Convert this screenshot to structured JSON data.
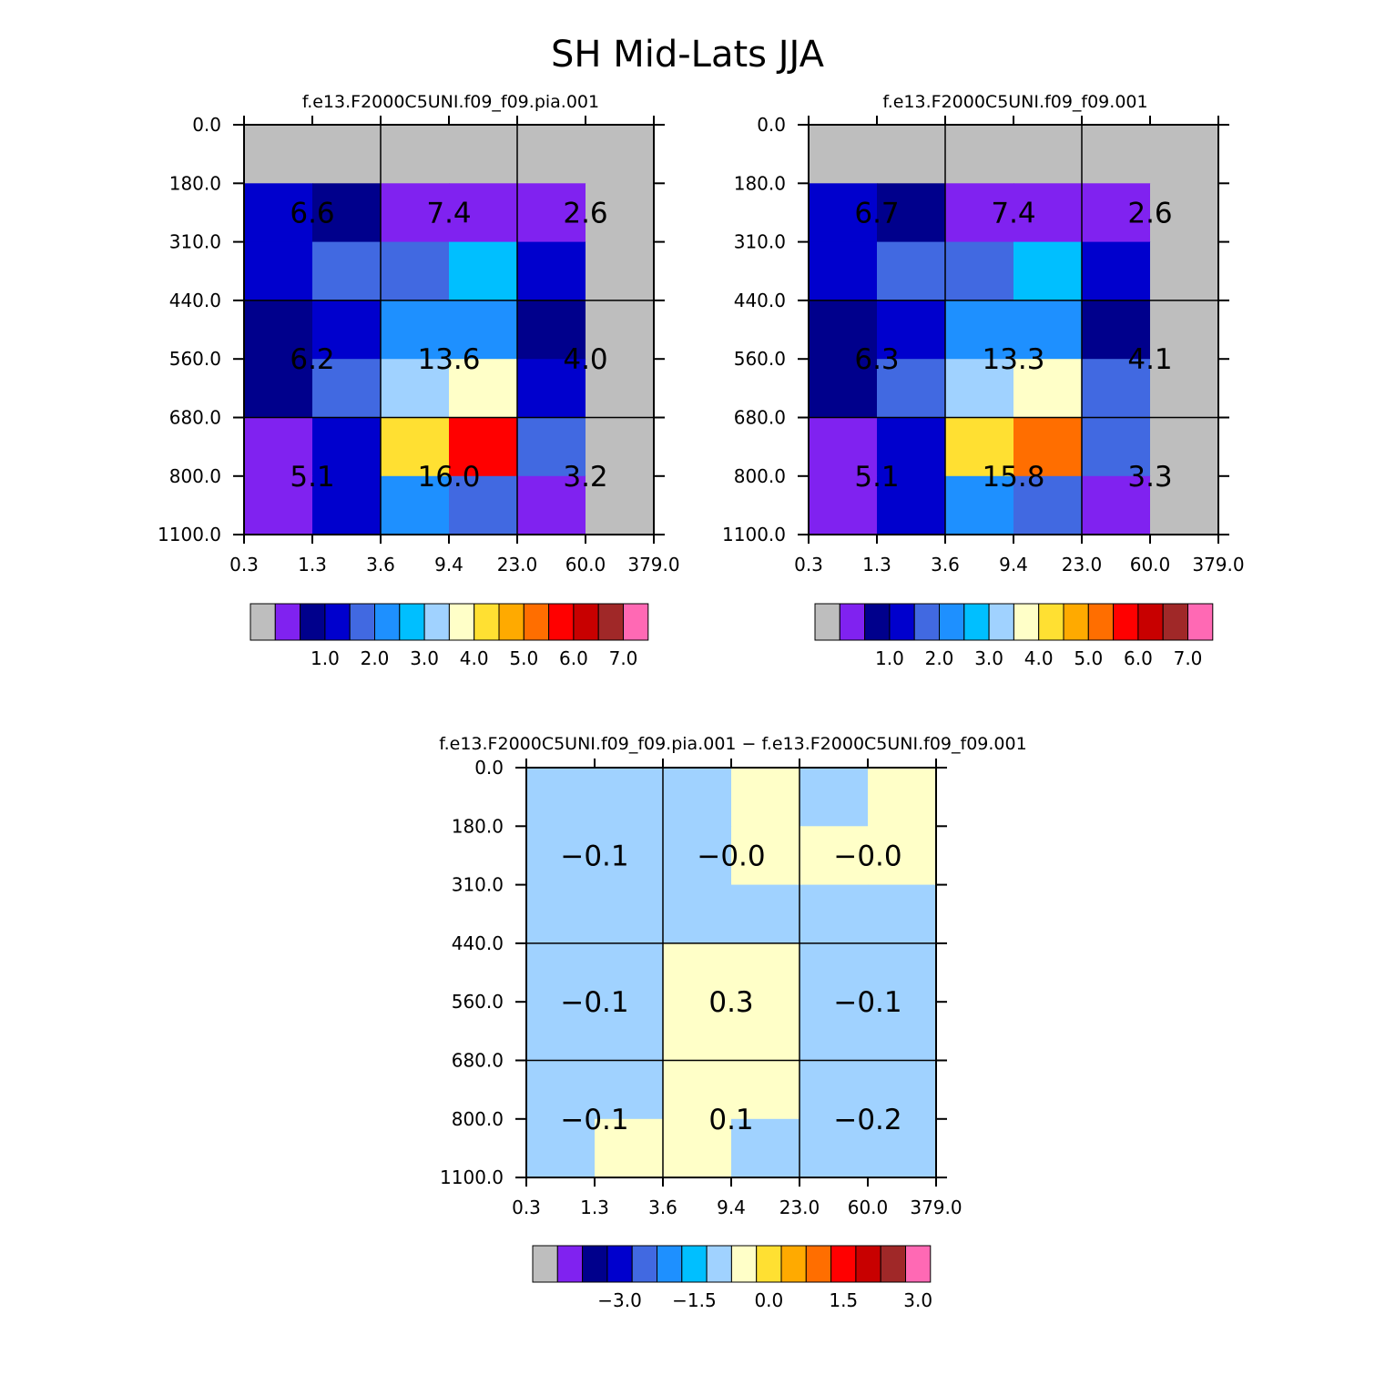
{
  "title": "SH Mid-Lats JJA",
  "color_scale": [
    "#bebebe",
    "#8022f0",
    "#00008c",
    "#0000cd",
    "#4169e1",
    "#1e90ff",
    "#00bfff",
    "#a0d2ff",
    "#ffffc8",
    "#ffe032",
    "#ffaa00",
    "#ff6e00",
    "#ff0000",
    "#c80000",
    "#a02828",
    "#ff69b4"
  ],
  "chart_data": [
    {
      "id": "left",
      "type": "heatmap",
      "title": "f.e13.F2000C5UNI.f09_f09.pia.001",
      "x_ticks": [
        "0.3",
        "1.3",
        "3.6",
        "9.4",
        "23.0",
        "60.0",
        "379.0"
      ],
      "y_ticks": [
        "0.0",
        "180.0",
        "310.0",
        "440.0",
        "560.0",
        "680.0",
        "800.0",
        "1100.0"
      ],
      "cells": [
        [
          0,
          0,
          0,
          0,
          0,
          0
        ],
        [
          3,
          2,
          1,
          1,
          1,
          0
        ],
        [
          3,
          4,
          4,
          6,
          3,
          0
        ],
        [
          2,
          3,
          5,
          5,
          2,
          0
        ],
        [
          2,
          4,
          7,
          8,
          3,
          0
        ],
        [
          1,
          3,
          9,
          12,
          4,
          0
        ],
        [
          1,
          3,
          5,
          4,
          1,
          0
        ]
      ],
      "labels": [
        [
          "6.6",
          "7.4",
          "2.6"
        ],
        [
          "6.2",
          "13.6",
          "4.0"
        ],
        [
          "5.1",
          "16.0",
          "3.2"
        ]
      ],
      "colorbar_labels": [
        "1.0",
        "2.0",
        "3.0",
        "4.0",
        "5.0",
        "6.0",
        "7.0"
      ]
    },
    {
      "id": "right",
      "type": "heatmap",
      "title": "f.e13.F2000C5UNI.f09_f09.001",
      "x_ticks": [
        "0.3",
        "1.3",
        "3.6",
        "9.4",
        "23.0",
        "60.0",
        "379.0"
      ],
      "y_ticks": [
        "0.0",
        "180.0",
        "310.0",
        "440.0",
        "560.0",
        "680.0",
        "800.0",
        "1100.0"
      ],
      "cells": [
        [
          0,
          0,
          0,
          0,
          0,
          0
        ],
        [
          3,
          2,
          1,
          1,
          1,
          0
        ],
        [
          3,
          4,
          4,
          6,
          3,
          0
        ],
        [
          2,
          3,
          5,
          5,
          2,
          0
        ],
        [
          2,
          4,
          7,
          8,
          4,
          0
        ],
        [
          1,
          3,
          9,
          11,
          4,
          0
        ],
        [
          1,
          3,
          5,
          4,
          1,
          0
        ]
      ],
      "labels": [
        [
          "6.7",
          "7.4",
          "2.6"
        ],
        [
          "6.3",
          "13.3",
          "4.1"
        ],
        [
          "5.1",
          "15.8",
          "3.3"
        ]
      ],
      "colorbar_labels": [
        "1.0",
        "2.0",
        "3.0",
        "4.0",
        "5.0",
        "6.0",
        "7.0"
      ]
    },
    {
      "id": "diff",
      "type": "heatmap",
      "title": "f.e13.F2000C5UNI.f09_f09.pia.001 − f.e13.F2000C5UNI.f09_f09.001",
      "x_ticks": [
        "0.3",
        "1.3",
        "3.6",
        "9.4",
        "23.0",
        "60.0",
        "379.0"
      ],
      "y_ticks": [
        "0.0",
        "180.0",
        "310.0",
        "440.0",
        "560.0",
        "680.0",
        "800.0",
        "1100.0"
      ],
      "cells": [
        [
          7,
          7,
          7,
          8,
          7,
          8
        ],
        [
          7,
          7,
          7,
          8,
          8,
          8
        ],
        [
          7,
          7,
          7,
          7,
          7,
          7
        ],
        [
          7,
          7,
          8,
          8,
          7,
          7
        ],
        [
          7,
          7,
          8,
          8,
          7,
          7
        ],
        [
          7,
          7,
          8,
          8,
          7,
          7
        ],
        [
          7,
          8,
          8,
          7,
          7,
          7
        ]
      ],
      "labels": [
        [
          "−0.1",
          "−0.0",
          "−0.0"
        ],
        [
          "−0.1",
          "0.3",
          "−0.1"
        ],
        [
          "−0.1",
          "0.1",
          "−0.2"
        ]
      ],
      "colorbar_labels": [
        "−3.0",
        "−1.5",
        "0.0",
        "1.5",
        "3.0"
      ]
    }
  ]
}
